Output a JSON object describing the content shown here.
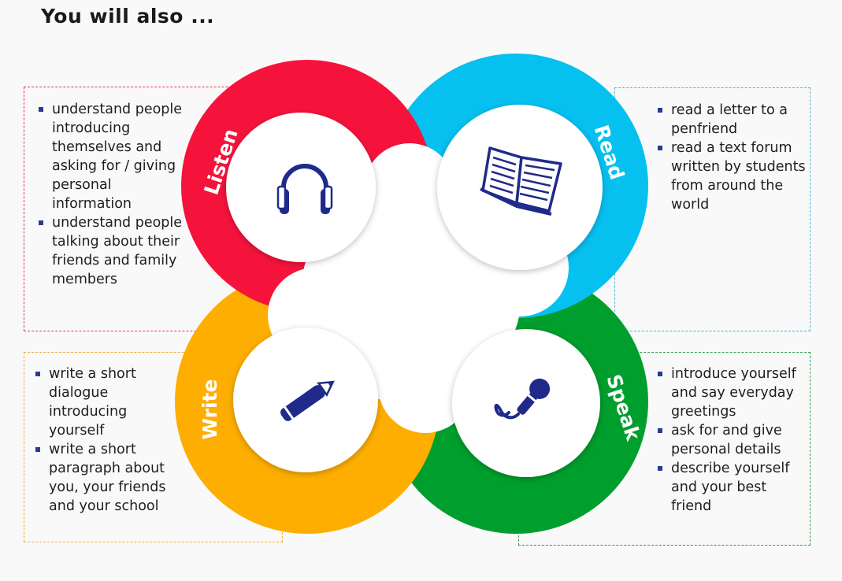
{
  "title": "You will also ...",
  "colors": {
    "listen": "#f5133c",
    "read": "#06c0f0",
    "write": "#fdae00",
    "speak": "#009e2d",
    "icon": "#1f2a8a"
  },
  "sections": {
    "listen": {
      "label": "Listen",
      "icon": "headphones-icon",
      "items": [
        "understand people introducing themselves and asking for / giving personal information",
        "understand people talking about their friends and family members"
      ]
    },
    "read": {
      "label": "Read",
      "icon": "open-book-icon",
      "items": [
        "read a letter to a penfriend",
        "read a text forum written by students from around the world"
      ]
    },
    "write": {
      "label": "Write",
      "icon": "pencil-icon",
      "items": [
        "write a short dialogue introducing yourself",
        "write a short paragraph about you, your friends and your school"
      ]
    },
    "speak": {
      "label": "Speak",
      "icon": "microphone-icon",
      "items": [
        "introduce yourself and say everyday greetings",
        "ask for and give personal details",
        "describe yourself and your best friend"
      ]
    }
  }
}
